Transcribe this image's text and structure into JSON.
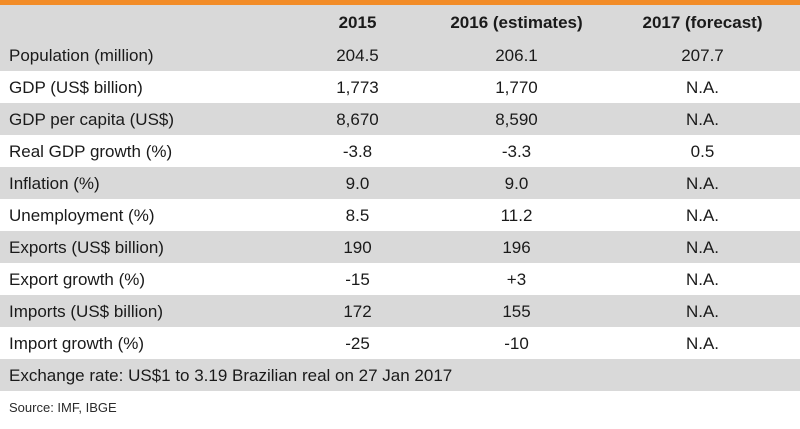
{
  "accent_color": "#f28c28",
  "row_shade_color": "#d9d9d9",
  "table": {
    "headers": [
      "",
      "2015",
      "2016 (estimates)",
      "2017 (forecast)"
    ],
    "rows": [
      {
        "label": "Population  (million)",
        "values": [
          "204.5",
          "206.1",
          "207.7"
        ]
      },
      {
        "label": "GDP (US$ billion)",
        "values": [
          "1,773",
          "1,770",
          "N.A."
        ]
      },
      {
        "label": "GDP per capita  (US$)",
        "values": [
          "8,670",
          "8,590",
          "N.A."
        ]
      },
      {
        "label": "Real GDP growth (%)",
        "values": [
          "-3.8",
          "-3.3",
          "0.5"
        ]
      },
      {
        "label": "Inflation (%)",
        "values": [
          "9.0",
          "9.0",
          "N.A."
        ]
      },
      {
        "label": "Unemployment  (%)",
        "values": [
          "8.5",
          "11.2",
          "N.A."
        ]
      },
      {
        "label": "Exports (US$ billion)",
        "values": [
          "190",
          "196",
          "N.A."
        ]
      },
      {
        "label": "Export growth (%)",
        "values": [
          "-15",
          "+3",
          "N.A."
        ]
      },
      {
        "label": "Imports (US$ billion)",
        "values": [
          "172",
          "155",
          "N.A."
        ]
      },
      {
        "label": "Import growth (%)",
        "values": [
          "-25",
          "-10",
          "N.A."
        ]
      }
    ],
    "exchange_note": "Exchange rate: US$1 to 3.19 Brazilian real on 27 Jan 2017"
  },
  "source": "Source: IMF, IBGE"
}
